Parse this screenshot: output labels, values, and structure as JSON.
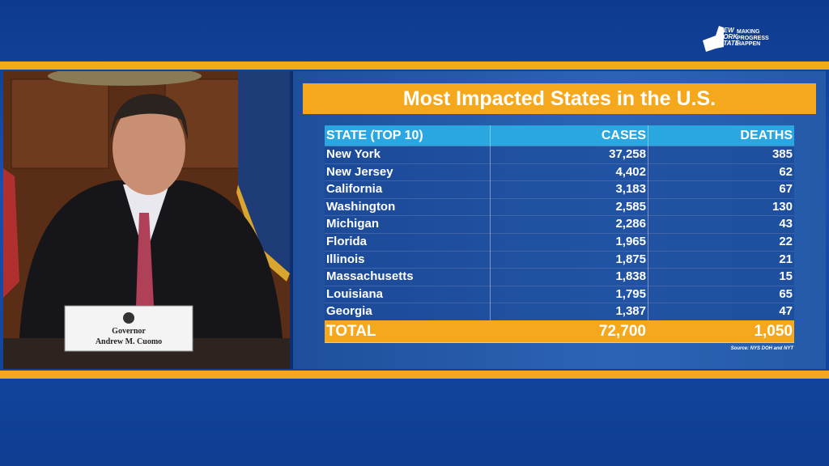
{
  "logo": {
    "state_lines": [
      "NEW",
      "YORK",
      "STATE"
    ],
    "slogan_lines": [
      "MAKING",
      "PROGRESS",
      "HAPPEN"
    ]
  },
  "nameplate": {
    "title": "Governor",
    "name": "Andrew M. Cuomo"
  },
  "slide": {
    "title": "Most Impacted States in the U.S.",
    "table": {
      "header": [
        "STATE (TOP 10)",
        "CASES",
        "DEATHS"
      ],
      "rows": [
        [
          "New York",
          "37,258",
          "385"
        ],
        [
          "New Jersey",
          "4,402",
          "62"
        ],
        [
          "California",
          "3,183",
          "67"
        ],
        [
          "Washington",
          "2,585",
          "130"
        ],
        [
          "Michigan",
          "2,286",
          "43"
        ],
        [
          "Florida",
          "1,965",
          "22"
        ],
        [
          "Illinois",
          "1,875",
          "21"
        ],
        [
          "Massachusetts",
          "1,838",
          "15"
        ],
        [
          "Louisiana",
          "1,795",
          "65"
        ],
        [
          "Georgia",
          "1,387",
          "47"
        ]
      ],
      "total": [
        "TOTAL",
        "72,700",
        "1,050"
      ]
    },
    "source": "Source: NYS DOH and NYT"
  }
}
